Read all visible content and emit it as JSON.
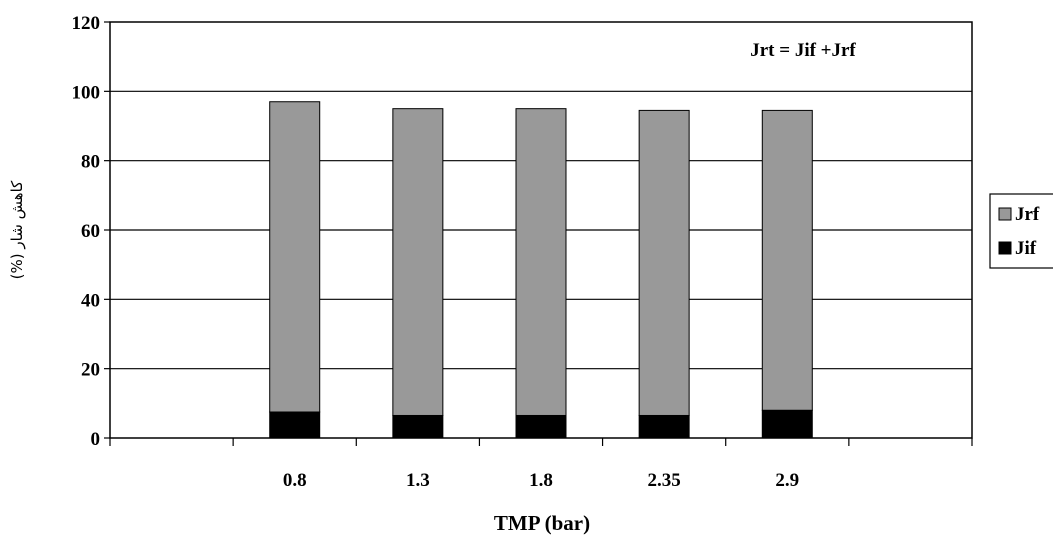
{
  "chart_data": {
    "type": "bar",
    "stacked": true,
    "categories": [
      "",
      "0.8",
      "1.3",
      "1.8",
      "2.35",
      "2.9",
      ""
    ],
    "series": [
      {
        "name": "Jif",
        "values": [
          null,
          7.5,
          6.5,
          6.5,
          6.5,
          8.0,
          null
        ],
        "color": "#000000"
      },
      {
        "name": "Jrf",
        "values": [
          null,
          89.5,
          88.5,
          88.5,
          88.0,
          86.5,
          null
        ],
        "color": "#999999"
      }
    ],
    "xlabel": "TMP (bar)",
    "ylabel": "کاهش شار (%)",
    "ylim": [
      0,
      120
    ],
    "yticks": [
      "0",
      "20",
      "40",
      "60",
      "80",
      "100",
      "120"
    ],
    "annotation": "Jrt = Jif +Jrf",
    "legend": {
      "placement": "right",
      "entries": [
        "Jrf",
        "Jif"
      ]
    },
    "grid": true
  }
}
